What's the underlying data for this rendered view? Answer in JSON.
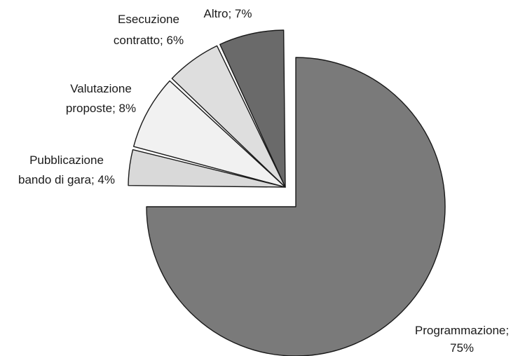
{
  "chart_data": {
    "type": "pie",
    "exploded": true,
    "slices": [
      {
        "name": "Programmazione",
        "value": 75,
        "label_lines": [
          "Programmazione;",
          "75%"
        ],
        "color": "#7a7a7a"
      },
      {
        "name": "Pubblicazione bando di gara",
        "value": 4,
        "label_lines": [
          "Pubblicazione",
          "bando di gara; 4%"
        ],
        "color": "#d9d9d9"
      },
      {
        "name": "Valutazione proposte",
        "value": 8,
        "label_lines": [
          "Valutazione",
          "proposte; 8%"
        ],
        "color": "#f1f1f1"
      },
      {
        "name": "Esecuzione contratto",
        "value": 6,
        "label_lines": [
          "Esecuzione",
          "contratto; 6%"
        ],
        "color": "#dedede"
      },
      {
        "name": "Altro",
        "value": 7,
        "label_lines": [
          "Altro; 7%"
        ],
        "color": "#6a6a6a"
      }
    ]
  }
}
